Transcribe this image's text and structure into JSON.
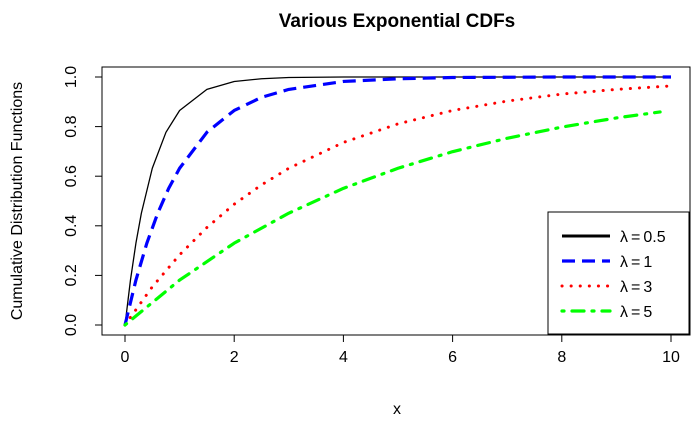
{
  "chart_data": {
    "type": "line",
    "title": "Various Exponential CDFs",
    "xlabel": "x",
    "ylabel": "Cumulative Distribution Functions",
    "xlim": [
      0,
      10
    ],
    "ylim": [
      0,
      1
    ],
    "x_ticks": [
      "0",
      "2",
      "4",
      "6",
      "8",
      "10"
    ],
    "y_ticks": [
      "0.0",
      "0.2",
      "0.4",
      "0.6",
      "0.8",
      "1.0"
    ],
    "legend_placement": "bottom-right",
    "grid": false,
    "series": [
      {
        "name": "λ = 0.5",
        "symbol": "λ",
        "value_label": "0.5",
        "color": "#000000",
        "style": "solid",
        "x": [
          0,
          0.1,
          0.2,
          0.3,
          0.5,
          0.75,
          1,
          1.5,
          2,
          2.5,
          3,
          4,
          5,
          6,
          8,
          10
        ],
        "y": [
          0,
          0.181,
          0.33,
          0.451,
          0.632,
          0.777,
          0.865,
          0.95,
          0.982,
          0.993,
          0.998,
          1.0,
          1.0,
          1.0,
          1.0,
          1.0
        ]
      },
      {
        "name": "λ = 1",
        "symbol": "λ",
        "value_label": "1",
        "color": "#0000ff",
        "style": "dashed",
        "x": [
          0,
          0.2,
          0.4,
          0.6,
          0.8,
          1,
          1.5,
          2,
          2.5,
          3,
          4,
          5,
          6,
          8,
          10
        ],
        "y": [
          0,
          0.181,
          0.33,
          0.451,
          0.551,
          0.632,
          0.777,
          0.865,
          0.918,
          0.95,
          0.982,
          0.993,
          0.998,
          1.0,
          1.0
        ]
      },
      {
        "name": "λ = 3",
        "symbol": "λ",
        "value_label": "3",
        "color": "#ff0000",
        "style": "dotted",
        "x": [
          0,
          0.5,
          1,
          1.5,
          2,
          2.5,
          3,
          4,
          5,
          6,
          7,
          8,
          9,
          10
        ],
        "y": [
          0,
          0.154,
          0.283,
          0.393,
          0.487,
          0.565,
          0.632,
          0.736,
          0.811,
          0.865,
          0.903,
          0.931,
          0.95,
          0.964
        ]
      },
      {
        "name": "λ = 5",
        "symbol": "λ",
        "value_label": "5",
        "color": "#00ff00",
        "style": "dotdash",
        "x": [
          0,
          1,
          2,
          3,
          4,
          5,
          6,
          7,
          8,
          9,
          9.8
        ],
        "y": [
          0,
          0.181,
          0.33,
          0.451,
          0.551,
          0.632,
          0.699,
          0.753,
          0.798,
          0.835,
          0.859
        ]
      }
    ]
  }
}
